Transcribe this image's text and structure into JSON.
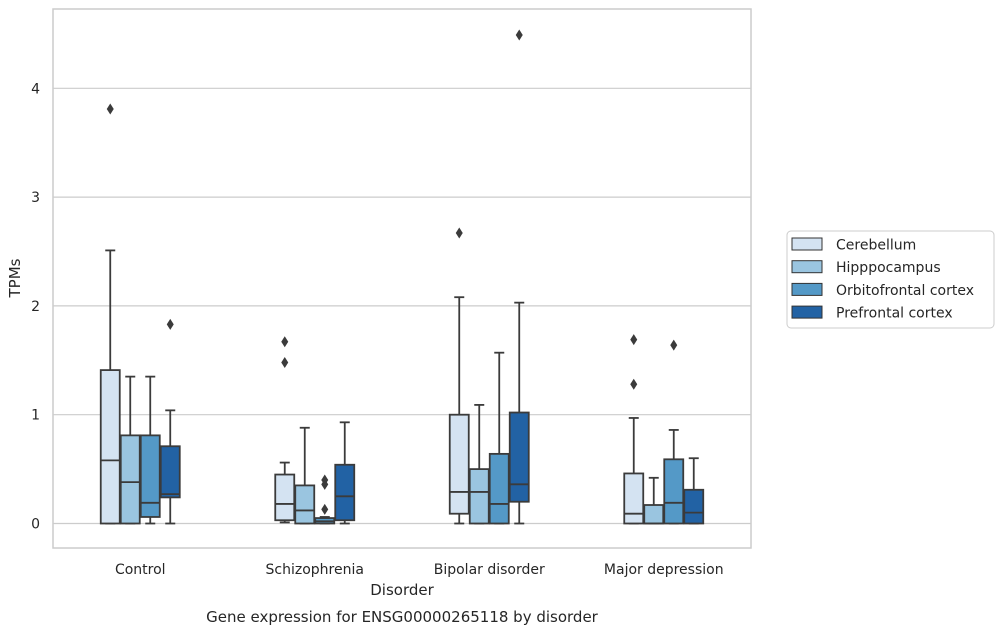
{
  "chart_data": {
    "type": "box",
    "title": "",
    "caption": "Gene expression for ENSG00000265118 by disorder",
    "xlabel": "Disorder",
    "ylabel": "TPMs",
    "ylim": [
      -0.22,
      4.7
    ],
    "yticks": [
      0,
      1,
      2,
      3,
      4
    ],
    "grid": "horizontal",
    "legend_position": "right",
    "categories": [
      "Control",
      "Schizophrenia",
      "Bipolar disorder",
      "Major depression"
    ],
    "series": [
      {
        "name": "Cerebellum",
        "color": "#d4e3f2",
        "boxes": [
          {
            "whislo": 0,
            "q1": 0,
            "med": 0.58,
            "q3": 1.41,
            "whishi": 2.51,
            "fliers": [
              3.81
            ]
          },
          {
            "whislo": 0.01,
            "q1": 0.03,
            "med": 0.18,
            "q3": 0.45,
            "whishi": 0.56,
            "fliers": [
              1.48,
              1.67
            ]
          },
          {
            "whislo": 0,
            "q1": 0.09,
            "med": 0.29,
            "q3": 1.0,
            "whishi": 2.08,
            "fliers": [
              2.67
            ]
          },
          {
            "whislo": 0,
            "q1": 0,
            "med": 0.09,
            "q3": 0.46,
            "whishi": 0.97,
            "fliers": [
              1.28,
              1.69
            ]
          }
        ]
      },
      {
        "name": "Hipppocampus",
        "color": "#9ac5e0",
        "boxes": [
          {
            "whislo": 0,
            "q1": 0,
            "med": 0.38,
            "q3": 0.81,
            "whishi": 1.35,
            "fliers": []
          },
          {
            "whislo": 0,
            "q1": 0,
            "med": 0.12,
            "q3": 0.35,
            "whishi": 0.88,
            "fliers": []
          },
          {
            "whislo": 0,
            "q1": 0,
            "med": 0.29,
            "q3": 0.5,
            "whishi": 1.09,
            "fliers": []
          },
          {
            "whislo": 0,
            "q1": 0,
            "med": 0,
            "q3": 0.17,
            "whishi": 0.42,
            "fliers": []
          }
        ]
      },
      {
        "name": "Orbitofrontal cortex",
        "color": "#5499c7",
        "boxes": [
          {
            "whislo": 0,
            "q1": 0.06,
            "med": 0.19,
            "q3": 0.81,
            "whishi": 1.35,
            "fliers": []
          },
          {
            "whislo": 0,
            "q1": 0,
            "med": 0.02,
            "q3": 0.05,
            "whishi": 0.06,
            "fliers": [
              0.13,
              0.36,
              0.4
            ]
          },
          {
            "whislo": 0,
            "q1": 0,
            "med": 0.18,
            "q3": 0.64,
            "whishi": 1.57,
            "fliers": []
          },
          {
            "whislo": 0,
            "q1": 0,
            "med": 0.19,
            "q3": 0.59,
            "whishi": 0.86,
            "fliers": [
              1.64
            ]
          }
        ]
      },
      {
        "name": "Prefrontal cortex",
        "color": "#2262a4",
        "boxes": [
          {
            "whislo": 0,
            "q1": 0.24,
            "med": 0.27,
            "q3": 0.71,
            "whishi": 1.04,
            "fliers": [
              1.83
            ]
          },
          {
            "whislo": 0,
            "q1": 0.03,
            "med": 0.25,
            "q3": 0.54,
            "whishi": 0.93,
            "fliers": []
          },
          {
            "whislo": 0,
            "q1": 0.2,
            "med": 0.36,
            "q3": 1.02,
            "whishi": 2.03,
            "fliers": [
              4.49
            ]
          },
          {
            "whislo": 0,
            "q1": 0,
            "med": 0.1,
            "q3": 0.31,
            "whishi": 0.6,
            "fliers": []
          }
        ]
      }
    ]
  }
}
